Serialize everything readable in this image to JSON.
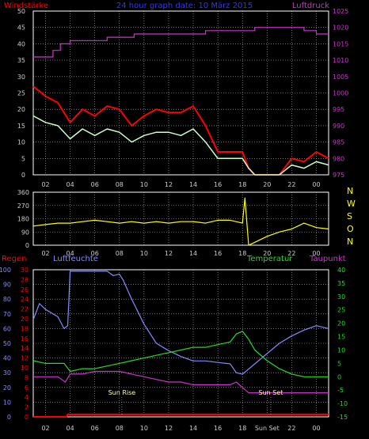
{
  "colors": {
    "background": "#000000",
    "frame": "#ffffff",
    "grid": "#bbbbbb",
    "wind_gust": "#ff0000",
    "wind_avg": "#ccffcc",
    "pressure": "#cc33cc",
    "direction": "#ffff00",
    "rain": "#ff0000",
    "humidity": "#8888ff",
    "temperature": "#22dd22",
    "dewpoint": "#cc33cc",
    "title": "#3333ff",
    "label_gray": "#cccccc",
    "compass": "#ffff00"
  },
  "x_ticks": [
    "02",
    "04",
    "06",
    "08",
    "10",
    "12",
    "14",
    "16",
    "18",
    "20",
    "22",
    "00"
  ],
  "bottom_x_ticks": [
    "02",
    "04",
    "06",
    "08",
    "10",
    "12",
    "14",
    "16",
    "18",
    "Sun Set",
    "22",
    "00"
  ],
  "chart_data": [
    {
      "type": "line",
      "title": "24 hour graph date: 10 März 2015",
      "left_label": "Windstärke",
      "right_label": "Luftdruck",
      "ylim": [
        0,
        50
      ],
      "y2lim": [
        975,
        1025
      ],
      "yticks": [
        "0",
        "5",
        "10",
        "15",
        "20",
        "25",
        "30",
        "35",
        "40",
        "45",
        "50"
      ],
      "y2ticks": [
        "975",
        "980",
        "985",
        "990",
        "995",
        "1000",
        "1005",
        "1010",
        "1015",
        "1020",
        "1025"
      ],
      "series": [
        {
          "name": "Windstärke Böen",
          "axis": "left",
          "x": [
            0.0,
            1.0,
            2.0,
            3.0,
            4.0,
            5.0,
            6.0,
            7.0,
            8.0,
            9.0,
            10.0,
            11.0,
            12.0,
            13.0,
            14.0,
            15.0,
            16.0,
            17.0,
            17.5,
            18.0,
            19.0,
            20.0,
            21.0,
            22.0,
            23.0,
            24.0
          ],
          "values": [
            27,
            24,
            22,
            16,
            20,
            18,
            21,
            20,
            15,
            18,
            20,
            19,
            19,
            21,
            15,
            7,
            7,
            7,
            2,
            0,
            0,
            0,
            5,
            4,
            7,
            5
          ]
        },
        {
          "name": "Windstärke Mittel",
          "axis": "left",
          "x": [
            0.0,
            1.0,
            2.0,
            3.0,
            4.0,
            5.0,
            6.0,
            7.0,
            8.0,
            9.0,
            10.0,
            11.0,
            12.0,
            13.0,
            14.0,
            15.0,
            16.0,
            17.0,
            17.5,
            18.0,
            19.0,
            20.0,
            21.0,
            22.0,
            23.0,
            24.0
          ],
          "values": [
            18,
            16,
            15,
            11,
            14,
            12,
            14,
            13,
            10,
            12,
            13,
            13,
            12,
            14,
            10,
            5,
            5,
            5,
            2,
            0,
            0,
            0,
            3,
            2,
            4,
            3
          ]
        },
        {
          "name": "Luftdruck",
          "axis": "right",
          "x": [
            0.0,
            0.4,
            1.6,
            2.2,
            3.0,
            4.0,
            6.0,
            7.0,
            8.2,
            9.0,
            11.0,
            12.5,
            14.0,
            17.0,
            18.0,
            20.0,
            22.0,
            23.0,
            24.0
          ],
          "values": [
            1011,
            1011,
            1013,
            1015,
            1016,
            1016,
            1017,
            1017,
            1018,
            1018,
            1018,
            1018,
            1019,
            1019,
            1020,
            1020,
            1019,
            1018,
            1018
          ]
        }
      ]
    },
    {
      "type": "line",
      "right_labels": [
        "N",
        "W",
        "S",
        "O",
        "N"
      ],
      "ylim": [
        0,
        360
      ],
      "yticks": [
        "0",
        "90",
        "180",
        "270",
        "360"
      ],
      "series": [
        {
          "name": "Windrichtung",
          "x": [
            0.0,
            1.0,
            2.0,
            3.0,
            4.0,
            5.0,
            6.0,
            7.0,
            8.0,
            9.0,
            10.0,
            11.0,
            12.0,
            13.0,
            14.0,
            15.0,
            16.0,
            17.0,
            17.2,
            17.5,
            18.0,
            19.0,
            20.0,
            21.0,
            21.5,
            22.0,
            23.0,
            24.0
          ],
          "values": [
            130,
            140,
            150,
            150,
            160,
            170,
            160,
            150,
            160,
            150,
            160,
            150,
            160,
            160,
            150,
            170,
            170,
            150,
            320,
            0,
            20,
            60,
            90,
            110,
            130,
            150,
            120,
            110
          ]
        }
      ]
    },
    {
      "type": "line",
      "left_labels": [
        "Regen",
        "Luftfeuchte"
      ],
      "right_labels": [
        "Temperatur",
        "Taupunkt"
      ],
      "annotations": [
        "Sun Rise",
        "Sun Set"
      ],
      "sun_rise_x": 7.2,
      "sun_set_x": 19.3,
      "rain_ylim": [
        0,
        30
      ],
      "rain_ticks": [
        "0",
        "2",
        "4",
        "6",
        "8",
        "10",
        "12",
        "14",
        "16",
        "18",
        "20",
        "22",
        "24",
        "26",
        "28",
        "30"
      ],
      "humidity_ylim": [
        0,
        100
      ],
      "humidity_ticks": [
        "0",
        "10",
        "20",
        "30",
        "40",
        "50",
        "60",
        "70",
        "80",
        "90",
        "100"
      ],
      "temp_ylim": [
        -15,
        40
      ],
      "temp_ticks": [
        "-15",
        "-10",
        "-5",
        "0",
        "5",
        "10",
        "15",
        "20",
        "25",
        "30",
        "35",
        "40"
      ],
      "series": [
        {
          "name": "Luftfeuchte",
          "axis": "humidity",
          "x": [
            0.0,
            0.5,
            1.0,
            2.0,
            2.5,
            2.8,
            3.0,
            4.0,
            5.0,
            6.0,
            6.5,
            7.0,
            7.3,
            8.0,
            9.0,
            10.0,
            11.0,
            12.0,
            13.0,
            14.0,
            15.0,
            16.0,
            16.5,
            17.0,
            18.0,
            19.0,
            20.0,
            21.0,
            22.0,
            23.0,
            24.0
          ],
          "values": [
            66,
            77,
            73,
            68,
            60,
            62,
            99,
            99,
            99,
            99,
            96,
            97,
            93,
            80,
            63,
            50,
            45,
            41,
            38,
            38,
            37,
            36,
            30,
            29,
            36,
            43,
            50,
            55,
            59,
            62,
            60
          ]
        },
        {
          "name": "Temperatur",
          "axis": "temp",
          "x": [
            0.0,
            1.0,
            2.0,
            2.5,
            3.0,
            4.0,
            5.0,
            6.0,
            7.0,
            8.0,
            9.0,
            10.0,
            11.0,
            12.0,
            13.0,
            14.0,
            15.0,
            16.0,
            16.5,
            17.0,
            17.5,
            18.0,
            19.0,
            20.0,
            21.0,
            22.0,
            23.0,
            24.0
          ],
          "values": [
            6,
            5,
            5,
            5,
            2,
            3,
            3,
            4,
            5,
            6,
            7,
            8,
            9,
            10,
            11,
            11,
            12,
            13,
            16,
            17,
            14,
            10,
            6,
            3,
            1,
            0,
            0,
            0
          ]
        },
        {
          "name": "Taupunkt",
          "axis": "temp",
          "x": [
            0.0,
            1.0,
            2.0,
            2.6,
            3.0,
            4.0,
            5.0,
            6.0,
            7.0,
            8.0,
            9.0,
            10.0,
            11.0,
            12.0,
            13.0,
            14.0,
            15.0,
            16.0,
            16.5,
            17.0,
            17.5,
            18.0,
            19.0,
            20.0,
            21.0,
            22.0,
            23.0,
            24.0
          ],
          "values": [
            0,
            0,
            0,
            -2,
            1,
            1,
            2,
            2,
            2,
            1,
            0,
            -1,
            -2,
            -2,
            -3,
            -3,
            -3,
            -3,
            -2,
            -4,
            -6,
            -6,
            -6,
            -6,
            -6,
            -6,
            -6,
            -6
          ]
        },
        {
          "name": "Regen",
          "axis": "rain",
          "x": [
            0.0,
            2.7,
            2.8,
            24.0
          ],
          "values": [
            0,
            0,
            0.5,
            0.5
          ]
        }
      ]
    }
  ]
}
